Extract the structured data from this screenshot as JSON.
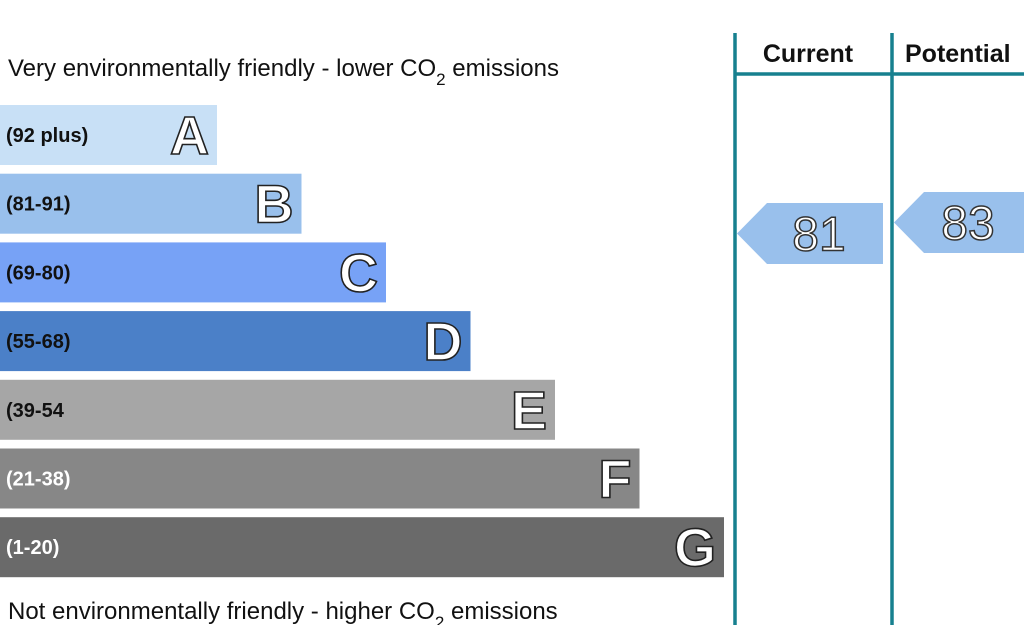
{
  "top_note": {
    "before": "Very environmentally friendly - lower CO",
    "subscript": "2",
    "after": " emissions"
  },
  "bottom_note": {
    "before": "Not environmentally friendly - higher CO",
    "subscript": "2",
    "after": " emissions"
  },
  "bands": [
    {
      "range": "(92 plus)",
      "letter": "A",
      "color": "#c8e0f6",
      "label_color": "#111111"
    },
    {
      "range": "(81-91)",
      "letter": "B",
      "color": "#99c0ec",
      "label_color": "#111111"
    },
    {
      "range": "(69-80)",
      "letter": "C",
      "color": "#77a2f6",
      "label_color": "#111111"
    },
    {
      "range": "(55-68)",
      "letter": "D",
      "color": "#4b80c8",
      "label_color": "#111111"
    },
    {
      "range": "(39-54",
      "letter": "E",
      "color": "#a6a6a6",
      "label_color": "#111111"
    },
    {
      "range": "(21-38)",
      "letter": "F",
      "color": "#878787",
      "label_color": "#ffffff"
    },
    {
      "range": "(1-20)",
      "letter": "G",
      "color": "#6a6a6a",
      "label_color": "#ffffff"
    }
  ],
  "columns": {
    "current": {
      "header": "Current",
      "value": 81,
      "color": "#99c0ec"
    },
    "potential": {
      "header": "Potential",
      "value": 83,
      "color": "#99c0ec"
    }
  }
}
